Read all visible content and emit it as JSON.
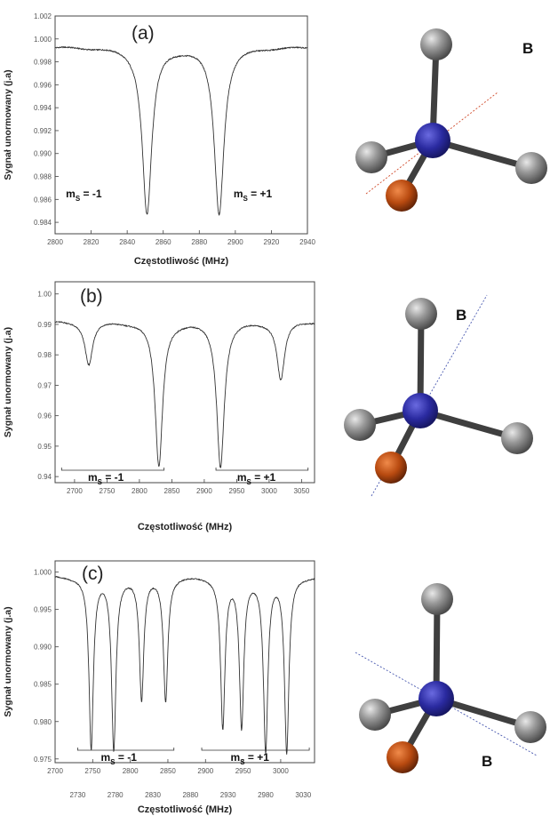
{
  "chart_data": [
    {
      "type": "line",
      "panel_label": "(a)",
      "xlabel": "Częstotliwość (MHz)",
      "ylabel": "Sygnał unormowany (j.a)",
      "xlim": [
        2800,
        2940
      ],
      "ylim": [
        0.983,
        1.002
      ],
      "xticks": [
        2800,
        2820,
        2840,
        2860,
        2880,
        2900,
        2920,
        2940
      ],
      "yticks": [
        0.984,
        0.986,
        0.988,
        0.99,
        0.992,
        0.994,
        0.996,
        0.998,
        1.0,
        1.002
      ],
      "xtick_labels": [
        "2800",
        "2820",
        "2840",
        "2860",
        "2880",
        "2900",
        "2920",
        "2940"
      ],
      "ytick_labels": [
        "0.984",
        "0.986",
        "0.988",
        "0.990",
        "0.992",
        "0.994",
        "0.996",
        "0.998",
        "1.000",
        "1.002"
      ],
      "baseline": 0.9993,
      "dips": [
        {
          "x": 2851,
          "min": 0.9848,
          "width": 3.2
        },
        {
          "x": 2891,
          "min": 0.9848,
          "width": 3.2
        }
      ],
      "annotations": [
        {
          "text": "m",
          "sub": "S",
          "rest": " = -1",
          "x": 2806,
          "y": 0.9865
        },
        {
          "text": "m",
          "sub": "S",
          "rest": " = +1",
          "x": 2899,
          "y": 0.9865
        }
      ],
      "field_label": "B"
    },
    {
      "type": "line",
      "panel_label": "(b)",
      "xlabel": "Częstotliwość (MHz)",
      "ylabel": "Sygnał unormowany (j.a)",
      "xlim": [
        2670,
        3070
      ],
      "ylim": [
        0.938,
        1.004
      ],
      "xticks": [
        2700,
        2750,
        2800,
        2850,
        2900,
        2950,
        3000,
        3050
      ],
      "yticks": [
        0.94,
        0.95,
        0.96,
        0.97,
        0.98,
        0.99,
        1.0
      ],
      "xtick_labels": [
        "2700",
        "2750",
        "2800",
        "2850",
        "2900",
        "2950",
        "3000",
        "3050"
      ],
      "ytick_labels": [
        "0.94",
        "0.95",
        "0.96",
        "0.97",
        "0.98",
        "0.99",
        "1.00"
      ],
      "baseline": 0.991,
      "dips": [
        {
          "x": 2722,
          "min": 0.977,
          "width": 7
        },
        {
          "x": 2830,
          "min": 0.9435,
          "width": 7
        },
        {
          "x": 2925,
          "min": 0.9435,
          "width": 7
        },
        {
          "x": 3018,
          "min": 0.972,
          "width": 7
        }
      ],
      "annotations": [
        {
          "text": "m",
          "sub": "S",
          "rest": " = -1",
          "range": [
            2680,
            2838
          ]
        },
        {
          "text": "m",
          "sub": "S",
          "rest": " = +1",
          "range": [
            2918,
            3060
          ]
        }
      ],
      "field_label": "B"
    },
    {
      "type": "line",
      "panel_label": "(c)",
      "xlabel": "Częstotliwość (MHz)",
      "ylabel": "Sygnał unormowany (j.a)",
      "xlim": [
        2700,
        3045
      ],
      "ylim": [
        0.9745,
        1.0015
      ],
      "xticks": [
        2700,
        2750,
        2800,
        2850,
        2900,
        2950,
        3000
      ],
      "yticks": [
        0.975,
        0.98,
        0.985,
        0.99,
        0.995,
        1.0
      ],
      "xtick_labels": [
        "2700",
        "2750",
        "2800",
        "2850",
        "2900",
        "2950",
        "3000"
      ],
      "extra_xtick_labels": [
        {
          "value": 2730,
          "label": "2730"
        },
        {
          "value": 2780,
          "label": "2780"
        },
        {
          "value": 2830,
          "label": "2830"
        },
        {
          "value": 2880,
          "label": "2880"
        },
        {
          "value": 2930,
          "label": "2930"
        },
        {
          "value": 2980,
          "label": "2980"
        },
        {
          "value": 3030,
          "label": "3030"
        }
      ],
      "ytick_labels": [
        "0.975",
        "0.980",
        "0.985",
        "0.990",
        "0.995",
        "1.000"
      ],
      "baseline": 0.9995,
      "dips": [
        {
          "x": 2748,
          "min": 0.9765,
          "width": 3.5
        },
        {
          "x": 2778,
          "min": 0.9765,
          "width": 3.5
        },
        {
          "x": 2815,
          "min": 0.983,
          "width": 3.5
        },
        {
          "x": 2847,
          "min": 0.983,
          "width": 3.5
        },
        {
          "x": 2923,
          "min": 0.9795,
          "width": 3.5
        },
        {
          "x": 2948,
          "min": 0.9795,
          "width": 3.5
        },
        {
          "x": 2980,
          "min": 0.9765,
          "width": 3.5
        },
        {
          "x": 3008,
          "min": 0.976,
          "width": 3.5
        }
      ],
      "annotations": [
        {
          "text": "m",
          "sub": "S",
          "rest": " = -1",
          "range": [
            2730,
            2858
          ]
        },
        {
          "text": "m",
          "sub": "S",
          "rest": " = +1",
          "range": [
            2895,
            3038
          ]
        }
      ],
      "field_label": "B"
    }
  ],
  "colors": {
    "carbon": "#8a8a8a",
    "nitrogen_vacancy": "#2a2aa0",
    "nitrogen": "#b84a10",
    "bond": "#3f3f3f",
    "field_line": "#d04a2a"
  }
}
